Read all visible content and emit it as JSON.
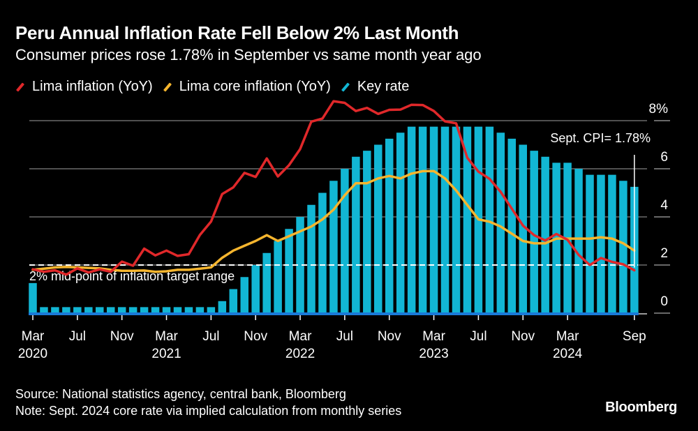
{
  "header": {
    "title": "Peru Annual Inflation Rate Fell Below 2% Last Month",
    "subtitle": "Consumer prices rose 1.78% in September vs same month year ago"
  },
  "legend": [
    {
      "label": "Lima inflation (YoY)",
      "color": "#e0282a"
    },
    {
      "label": "Lima core inflation (YoY)",
      "color": "#f5b52e"
    },
    {
      "label": "Key rate",
      "color": "#12b6d4"
    }
  ],
  "footer": {
    "source": "Source: National statistics agency, central bank, Bloomberg",
    "note": "Note: Sept. 2024 core rate via implied calculation from monthly series",
    "brand": "Bloomberg"
  },
  "chart_data": {
    "type": "bar+line",
    "title": "Peru Annual Inflation Rate Fell Below 2% Last Month",
    "subtitle": "Consumer prices rose 1.78% in September vs same month year ago",
    "xlabel": "",
    "ylabel": "",
    "ylim": [
      0,
      8
    ],
    "y_ticks": [
      "0",
      "2",
      "4",
      "6",
      "8%"
    ],
    "y_tick_values": [
      0,
      2,
      4,
      6,
      8
    ],
    "y_axis_side": "right",
    "grid": true,
    "legend_position": "top-left",
    "x_start": "Mar 2020",
    "x_end": "Sep 2024",
    "x_tick_labels": [
      {
        "month_index": 0,
        "label": "Mar",
        "year": "2020"
      },
      {
        "month_index": 4,
        "label": "Jul",
        "year": ""
      },
      {
        "month_index": 8,
        "label": "Nov",
        "year": ""
      },
      {
        "month_index": 12,
        "label": "Mar",
        "year": "2021"
      },
      {
        "month_index": 16,
        "label": "Jul",
        "year": ""
      },
      {
        "month_index": 20,
        "label": "Nov",
        "year": ""
      },
      {
        "month_index": 24,
        "label": "Mar",
        "year": "2022"
      },
      {
        "month_index": 28,
        "label": "Jul",
        "year": ""
      },
      {
        "month_index": 32,
        "label": "Nov",
        "year": ""
      },
      {
        "month_index": 36,
        "label": "Mar",
        "year": "2023"
      },
      {
        "month_index": 40,
        "label": "Jul",
        "year": ""
      },
      {
        "month_index": 44,
        "label": "Nov",
        "year": ""
      },
      {
        "month_index": 48,
        "label": "Mar",
        "year": "2024"
      },
      {
        "month_index": 54,
        "label": "Sep",
        "year": ""
      }
    ],
    "series": [
      {
        "name": "Key rate",
        "kind": "bar",
        "color": "#12b6d4",
        "values": [
          1.25,
          0.25,
          0.25,
          0.25,
          0.25,
          0.25,
          0.25,
          0.25,
          0.25,
          0.25,
          0.25,
          0.25,
          0.25,
          0.25,
          0.25,
          0.25,
          0.25,
          0.5,
          1.0,
          1.5,
          2.0,
          2.5,
          3.0,
          3.5,
          4.0,
          4.5,
          5.0,
          5.5,
          6.0,
          6.5,
          6.75,
          7.0,
          7.25,
          7.5,
          7.75,
          7.75,
          7.75,
          7.75,
          7.75,
          7.75,
          7.75,
          7.75,
          7.5,
          7.25,
          7.0,
          6.75,
          6.5,
          6.25,
          6.25,
          6.0,
          5.75,
          5.75,
          5.75,
          5.5,
          5.25
        ]
      },
      {
        "name": "Lima inflation (YoY)",
        "kind": "line",
        "color": "#e0282a",
        "values": [
          1.82,
          1.72,
          1.78,
          1.6,
          1.86,
          1.69,
          1.82,
          1.72,
          2.14,
          1.97,
          2.68,
          2.4,
          2.6,
          2.38,
          2.45,
          3.25,
          3.81,
          4.95,
          5.23,
          5.83,
          5.66,
          6.43,
          5.68,
          6.15,
          6.82,
          7.96,
          8.09,
          8.81,
          8.74,
          8.4,
          8.53,
          8.28,
          8.45,
          8.46,
          8.66,
          8.65,
          8.4,
          7.97,
          7.89,
          6.46,
          5.88,
          5.58,
          5.04,
          4.34,
          3.64,
          3.24,
          3.02,
          3.29,
          3.05,
          2.42,
          2.0,
          2.29,
          2.13,
          2.03,
          1.78
        ]
      },
      {
        "name": "Lima core inflation (YoY)",
        "kind": "line",
        "color": "#f5b52e",
        "values": [
          1.8,
          1.85,
          1.9,
          1.92,
          1.9,
          1.88,
          1.86,
          1.8,
          1.76,
          1.76,
          1.77,
          1.72,
          1.74,
          1.8,
          1.8,
          1.85,
          1.9,
          2.3,
          2.6,
          2.8,
          3.0,
          3.24,
          3.0,
          3.2,
          3.4,
          3.6,
          3.9,
          4.3,
          4.9,
          5.4,
          5.4,
          5.6,
          5.7,
          5.6,
          5.8,
          5.9,
          5.9,
          5.6,
          5.1,
          4.5,
          3.9,
          3.8,
          3.6,
          3.3,
          3.0,
          2.9,
          2.9,
          3.1,
          3.1,
          3.1,
          3.1,
          3.15,
          3.1,
          2.9,
          2.6
        ]
      }
    ],
    "reference_line": {
      "value": 2,
      "label": "2% mid-point of inflation target range",
      "style": "dashed",
      "color": "#ffffff"
    },
    "annotations": [
      {
        "text": "Sept. CPI= 1.78%",
        "month_index": 54
      }
    ]
  }
}
